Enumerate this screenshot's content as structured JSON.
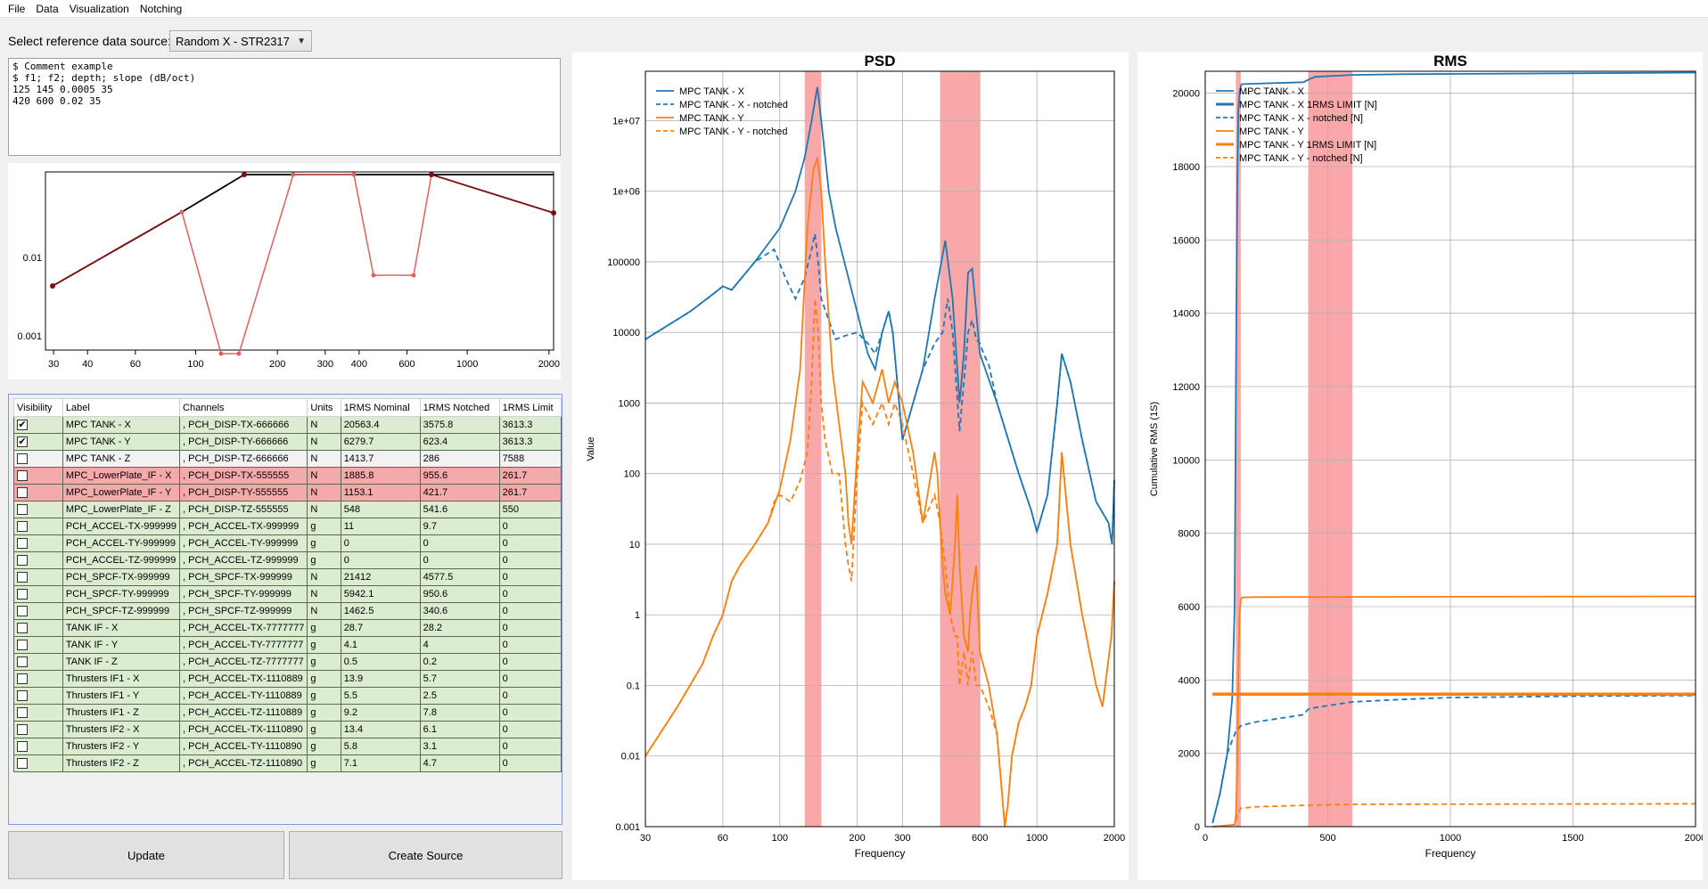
{
  "menu": [
    "File",
    "Data",
    "Visualization",
    "Notching"
  ],
  "source": {
    "label": "Select reference data source:",
    "selected": "Random X - STR2317"
  },
  "config_text": "$ Comment example\n$ f1; f2; depth; slope (dB/oct)\n125 145 0.0005 35\n420 600 0.02 35",
  "notch_plot": {
    "y_ticks": [
      "0.01",
      "0.001"
    ],
    "x_ticks": [
      "30",
      "40",
      "60",
      "100",
      "200",
      "300",
      "400",
      "600",
      "1000",
      "2000"
    ]
  },
  "table": {
    "headers": [
      "Visibility",
      "Label",
      "Channels",
      "Units",
      "1RMS Nominal",
      "1RMS Notched",
      "1RMS Limit"
    ],
    "rows": [
      {
        "checked": true,
        "label": "MPC TANK - X",
        "channel": ", PCH_DISP-TX-666666",
        "units": "N",
        "nominal": "20563.4",
        "notched": "3575.8",
        "limit": "3613.3",
        "status": "green"
      },
      {
        "checked": true,
        "label": "MPC TANK - Y",
        "channel": ", PCH_DISP-TY-666666",
        "units": "N",
        "nominal": "6279.7",
        "notched": "623.4",
        "limit": "3613.3",
        "status": "green"
      },
      {
        "checked": false,
        "label": "MPC TANK - Z",
        "channel": ", PCH_DISP-TZ-666666",
        "units": "N",
        "nominal": "1413.7",
        "notched": "286",
        "limit": "7588",
        "status": "gray"
      },
      {
        "checked": false,
        "label": "MPC_LowerPlate_IF - X",
        "channel": ", PCH_DISP-TX-555555",
        "units": "N",
        "nominal": "1885.8",
        "notched": "955.6",
        "limit": "261.7",
        "status": "red"
      },
      {
        "checked": false,
        "label": "MPC_LowerPlate_IF - Y",
        "channel": ", PCH_DISP-TY-555555",
        "units": "N",
        "nominal": "1153.1",
        "notched": "421.7",
        "limit": "261.7",
        "status": "red"
      },
      {
        "checked": false,
        "label": "MPC_LowerPlate_IF - Z",
        "channel": ", PCH_DISP-TZ-555555",
        "units": "N",
        "nominal": "548",
        "notched": "541.6",
        "limit": "550",
        "status": "green"
      },
      {
        "checked": false,
        "label": "PCH_ACCEL-TX-999999",
        "channel": ", PCH_ACCEL-TX-999999",
        "units": "g",
        "nominal": "11",
        "notched": "9.7",
        "limit": "0",
        "status": "green"
      },
      {
        "checked": false,
        "label": "PCH_ACCEL-TY-999999",
        "channel": ", PCH_ACCEL-TY-999999",
        "units": "g",
        "nominal": "0",
        "notched": "0",
        "limit": "0",
        "status": "green"
      },
      {
        "checked": false,
        "label": "PCH_ACCEL-TZ-999999",
        "channel": ", PCH_ACCEL-TZ-999999",
        "units": "g",
        "nominal": "0",
        "notched": "0",
        "limit": "0",
        "status": "green"
      },
      {
        "checked": false,
        "label": "PCH_SPCF-TX-999999",
        "channel": ", PCH_SPCF-TX-999999",
        "units": "N",
        "nominal": "21412",
        "notched": "4577.5",
        "limit": "0",
        "status": "green"
      },
      {
        "checked": false,
        "label": "PCH_SPCF-TY-999999",
        "channel": ", PCH_SPCF-TY-999999",
        "units": "N",
        "nominal": "5942.1",
        "notched": "950.6",
        "limit": "0",
        "status": "green"
      },
      {
        "checked": false,
        "label": "PCH_SPCF-TZ-999999",
        "channel": ", PCH_SPCF-TZ-999999",
        "units": "N",
        "nominal": "1462.5",
        "notched": "340.6",
        "limit": "0",
        "status": "green"
      },
      {
        "checked": false,
        "label": "TANK IF - X",
        "channel": ", PCH_ACCEL-TX-7777777",
        "units": "g",
        "nominal": "28.7",
        "notched": "28.2",
        "limit": "0",
        "status": "green"
      },
      {
        "checked": false,
        "label": "TANK IF - Y",
        "channel": ", PCH_ACCEL-TY-7777777",
        "units": "g",
        "nominal": "4.1",
        "notched": "4",
        "limit": "0",
        "status": "green"
      },
      {
        "checked": false,
        "label": "TANK IF - Z",
        "channel": ", PCH_ACCEL-TZ-7777777",
        "units": "g",
        "nominal": "0.5",
        "notched": "0.2",
        "limit": "0",
        "status": "green"
      },
      {
        "checked": false,
        "label": "Thrusters IF1 - X",
        "channel": ", PCH_ACCEL-TX-1110889",
        "units": "g",
        "nominal": "13.9",
        "notched": "5.7",
        "limit": "0",
        "status": "green"
      },
      {
        "checked": false,
        "label": "Thrusters IF1 - Y",
        "channel": ", PCH_ACCEL-TY-1110889",
        "units": "g",
        "nominal": "5.5",
        "notched": "2.5",
        "limit": "0",
        "status": "green"
      },
      {
        "checked": false,
        "label": "Thrusters IF1 - Z",
        "channel": ", PCH_ACCEL-TZ-1110889",
        "units": "g",
        "nominal": "9.2",
        "notched": "7.8",
        "limit": "0",
        "status": "green"
      },
      {
        "checked": false,
        "label": "Thrusters IF2 - X",
        "channel": ", PCH_ACCEL-TX-1110890",
        "units": "g",
        "nominal": "13.4",
        "notched": "6.1",
        "limit": "0",
        "status": "green"
      },
      {
        "checked": false,
        "label": "Thrusters IF2 - Y",
        "channel": ", PCH_ACCEL-TY-1110890",
        "units": "g",
        "nominal": "5.8",
        "notched": "3.1",
        "limit": "0",
        "status": "green"
      },
      {
        "checked": false,
        "label": "Thrusters IF2 - Z",
        "channel": ", PCH_ACCEL-TZ-1110890",
        "units": "g",
        "nominal": "7.1",
        "notched": "4.7",
        "limit": "0",
        "status": "green"
      }
    ]
  },
  "buttons": {
    "update": "Update",
    "create_source": "Create Source"
  },
  "colors": {
    "blue": "#1f77b4",
    "orange": "#ff7f0e",
    "band": "#f8a8a8"
  },
  "chart_data": [
    {
      "type": "line",
      "title": "PSD",
      "xlabel": "Frequency",
      "ylabel": "Value",
      "x_scale": "log",
      "y_scale": "log",
      "xlim": [
        30,
        2000
      ],
      "ylim": [
        0.001,
        50000000
      ],
      "x_ticks": [
        "30",
        "60",
        "100",
        "200",
        "300",
        "600",
        "1000",
        "2000"
      ],
      "y_ticks": [
        "0.001",
        "0.01",
        "0.1",
        "1",
        "10",
        "100",
        "1000",
        "10000",
        "100000",
        "1e+06",
        "1e+07"
      ],
      "grid": true,
      "legend": "top-left",
      "bands": [
        [
          125,
          145
        ],
        [
          420,
          600
        ]
      ],
      "series": [
        {
          "name": "MPC TANK - X",
          "color": "#1f77b4",
          "dash": "solid",
          "x": [
            30,
            45,
            55,
            60,
            65,
            80,
            100,
            115,
            125,
            133,
            140,
            145,
            155,
            165,
            190,
            220,
            235,
            250,
            265,
            275,
            300,
            330,
            360,
            400,
            440,
            470,
            500,
            520,
            540,
            560,
            580,
            600,
            700,
            850,
            950,
            1000,
            1100,
            1200,
            1250,
            1350,
            1500,
            1700,
            1900,
            1960,
            2000
          ],
          "y": [
            8000,
            20000,
            35000,
            45000,
            40000,
            100000,
            300000,
            1000000,
            3000000,
            10000000,
            30000000,
            10000000,
            1000000,
            300000,
            40000,
            5000,
            3000,
            10000,
            20000,
            10000,
            300,
            1000,
            3000,
            30000,
            200000,
            30000,
            1000,
            5000,
            70000,
            80000,
            20000,
            5000,
            1000,
            100,
            30,
            15,
            50,
            1000,
            5000,
            2000,
            300,
            40,
            20,
            10,
            80
          ]
        },
        {
          "name": "MPC TANK - X - notched",
          "color": "#1f77b4",
          "dash": "dashed",
          "x": [
            30,
            45,
            55,
            60,
            65,
            80,
            95,
            105,
            115,
            125,
            133,
            137,
            141,
            145,
            155,
            165,
            180,
            200,
            220,
            235,
            250,
            265,
            275,
            300,
            330,
            360,
            400,
            430,
            450,
            470,
            500,
            520,
            540,
            560,
            580,
            600,
            620,
            650,
            700,
            850,
            950,
            1000,
            1100,
            1200,
            1250,
            1350,
            1500,
            1700,
            1900,
            1960,
            2000
          ],
          "y": [
            8000,
            20000,
            35000,
            45000,
            40000,
            100000,
            150000,
            60000,
            30000,
            60000,
            150000,
            250000,
            100000,
            30000,
            15000,
            8000,
            9000,
            10000,
            7000,
            5000,
            10000,
            20000,
            10000,
            300,
            1000,
            3000,
            7000,
            10000,
            30000,
            10000,
            400,
            2000,
            10000,
            15000,
            8000,
            7000,
            5000,
            3500,
            1000,
            100,
            30,
            15,
            50,
            1000,
            5000,
            2000,
            300,
            40,
            20,
            10,
            80
          ]
        },
        {
          "name": "MPC TANK - Y",
          "color": "#ff7f0e",
          "dash": "solid",
          "x": [
            30,
            40,
            50,
            55,
            60,
            65,
            70,
            80,
            90,
            100,
            110,
            120,
            128,
            135,
            140,
            145,
            150,
            160,
            170,
            180,
            185,
            190,
            200,
            210,
            230,
            250,
            265,
            280,
            300,
            330,
            360,
            400,
            410,
            420,
            430,
            440,
            460,
            470,
            480,
            490,
            500,
            520,
            540,
            550,
            560,
            580,
            600,
            650,
            700,
            750,
            770,
            800,
            850,
            900,
            950,
            1000,
            1100,
            1200,
            1250,
            1350,
            1500,
            1700,
            1800,
            1950,
            2000
          ],
          "y": [
            0.01,
            0.05,
            0.2,
            0.5,
            1,
            3,
            5,
            10,
            20,
            60,
            300,
            3000,
            300000,
            2000000,
            3000000,
            1000000,
            100000,
            3000,
            500,
            100,
            20,
            10,
            200,
            2000,
            1000,
            3000,
            1000,
            2000,
            1000,
            200,
            20,
            200,
            100,
            20,
            5,
            2,
            1,
            3,
            10,
            50,
            5,
            0.5,
            0.3,
            1,
            2,
            5,
            0.3,
            0.1,
            0.02,
            0.001,
            0.002,
            0.01,
            0.03,
            0.05,
            0.1,
            0.5,
            2,
            10,
            200,
            10,
            1,
            0.1,
            0.05,
            0.5,
            3
          ]
        },
        {
          "name": "MPC TANK - Y - notched",
          "color": "#ff7f0e",
          "dash": "dashed",
          "x": [
            30,
            40,
            50,
            55,
            60,
            65,
            70,
            80,
            90,
            95,
            100,
            110,
            120,
            128,
            133,
            137,
            141,
            145,
            150,
            160,
            170,
            180,
            185,
            190,
            200,
            210,
            230,
            250,
            265,
            280,
            300,
            330,
            360,
            400,
            420,
            440,
            460,
            480,
            490,
            500,
            520,
            540,
            550,
            560,
            580,
            600,
            650,
            700,
            750,
            770,
            800,
            850,
            900,
            950,
            1000,
            1100,
            1200,
            1250,
            1350,
            1500,
            1700,
            1800,
            1950,
            2000
          ],
          "y": [
            0.01,
            0.05,
            0.2,
            0.5,
            1,
            3,
            5,
            10,
            20,
            40,
            50,
            40,
            80,
            200,
            2000,
            30000,
            10000,
            1000,
            300,
            100,
            100,
            10,
            5,
            3,
            100,
            1000,
            500,
            1000,
            500,
            1000,
            500,
            100,
            20,
            50,
            20,
            5,
            1,
            0.5,
            0.5,
            0.1,
            0.3,
            0.1,
            0.2,
            0.3,
            0.1,
            0.1,
            0.05,
            0.02,
            0.001,
            0.002,
            0.01,
            0.03,
            0.05,
            0.1,
            0.5,
            2,
            10,
            200,
            10,
            1,
            0.1,
            0.05,
            0.5,
            3
          ]
        }
      ]
    },
    {
      "type": "line",
      "title": "RMS",
      "xlabel": "Frequency",
      "ylabel": "Cumulative RMS (1S)",
      "xlim": [
        0,
        2000
      ],
      "ylim": [
        0,
        20600
      ],
      "x_ticks": [
        "0",
        "500",
        "1000",
        "1500",
        "2000"
      ],
      "y_ticks": [
        "0",
        "2000",
        "4000",
        "6000",
        "8000",
        "10000",
        "12000",
        "14000",
        "16000",
        "18000",
        "20000"
      ],
      "grid": true,
      "legend": "top-left",
      "bands": [
        [
          125,
          145
        ],
        [
          420,
          600
        ]
      ],
      "series": [
        {
          "name": "MPC TANK - X",
          "color": "#1f77b4",
          "dash": "solid",
          "x": [
            30,
            60,
            90,
            110,
            120,
            125,
            130,
            135,
            140,
            145,
            150,
            400,
            430,
            450,
            600,
            800,
            2000
          ],
          "y": [
            100,
            900,
            2000,
            3500,
            6000,
            12000,
            17000,
            19500,
            20000,
            20200,
            20250,
            20300,
            20400,
            20450,
            20500,
            20520,
            20563
          ]
        },
        {
          "name": "MPC TANK - X 1RMS LIMIT [N]",
          "color": "#1f77b4",
          "dash": "solid",
          "x": [
            30,
            2000
          ],
          "y": [
            3613,
            3613
          ]
        },
        {
          "name": "MPC TANK - X - notched [N]",
          "color": "#1f77b4",
          "dash": "dashed",
          "x": [
            30,
            60,
            90,
            110,
            125,
            145,
            200,
            300,
            400,
            420,
            450,
            600,
            800,
            1000,
            1500,
            2000
          ],
          "y": [
            100,
            900,
            2000,
            2350,
            2600,
            2750,
            2850,
            2950,
            3050,
            3200,
            3250,
            3400,
            3470,
            3520,
            3560,
            3576
          ]
        },
        {
          "name": "MPC TANK - Y",
          "color": "#ff7f0e",
          "dash": "solid",
          "x": [
            30,
            120,
            125,
            130,
            135,
            140,
            145,
            150,
            200,
            2000
          ],
          "y": [
            0,
            50,
            300,
            1500,
            4000,
            5800,
            6200,
            6250,
            6260,
            6280
          ]
        },
        {
          "name": "MPC TANK - Y 1RMS LIMIT [N]",
          "color": "#ff7f0e",
          "dash": "solid",
          "x": [
            30,
            2000
          ],
          "y": [
            3613,
            3613
          ]
        },
        {
          "name": "MPC TANK - Y - notched [N]",
          "color": "#ff7f0e",
          "dash": "dashed",
          "x": [
            30,
            120,
            130,
            145,
            200,
            400,
            600,
            2000
          ],
          "y": [
            0,
            50,
            300,
            500,
            540,
            580,
            610,
            623
          ]
        }
      ]
    }
  ]
}
